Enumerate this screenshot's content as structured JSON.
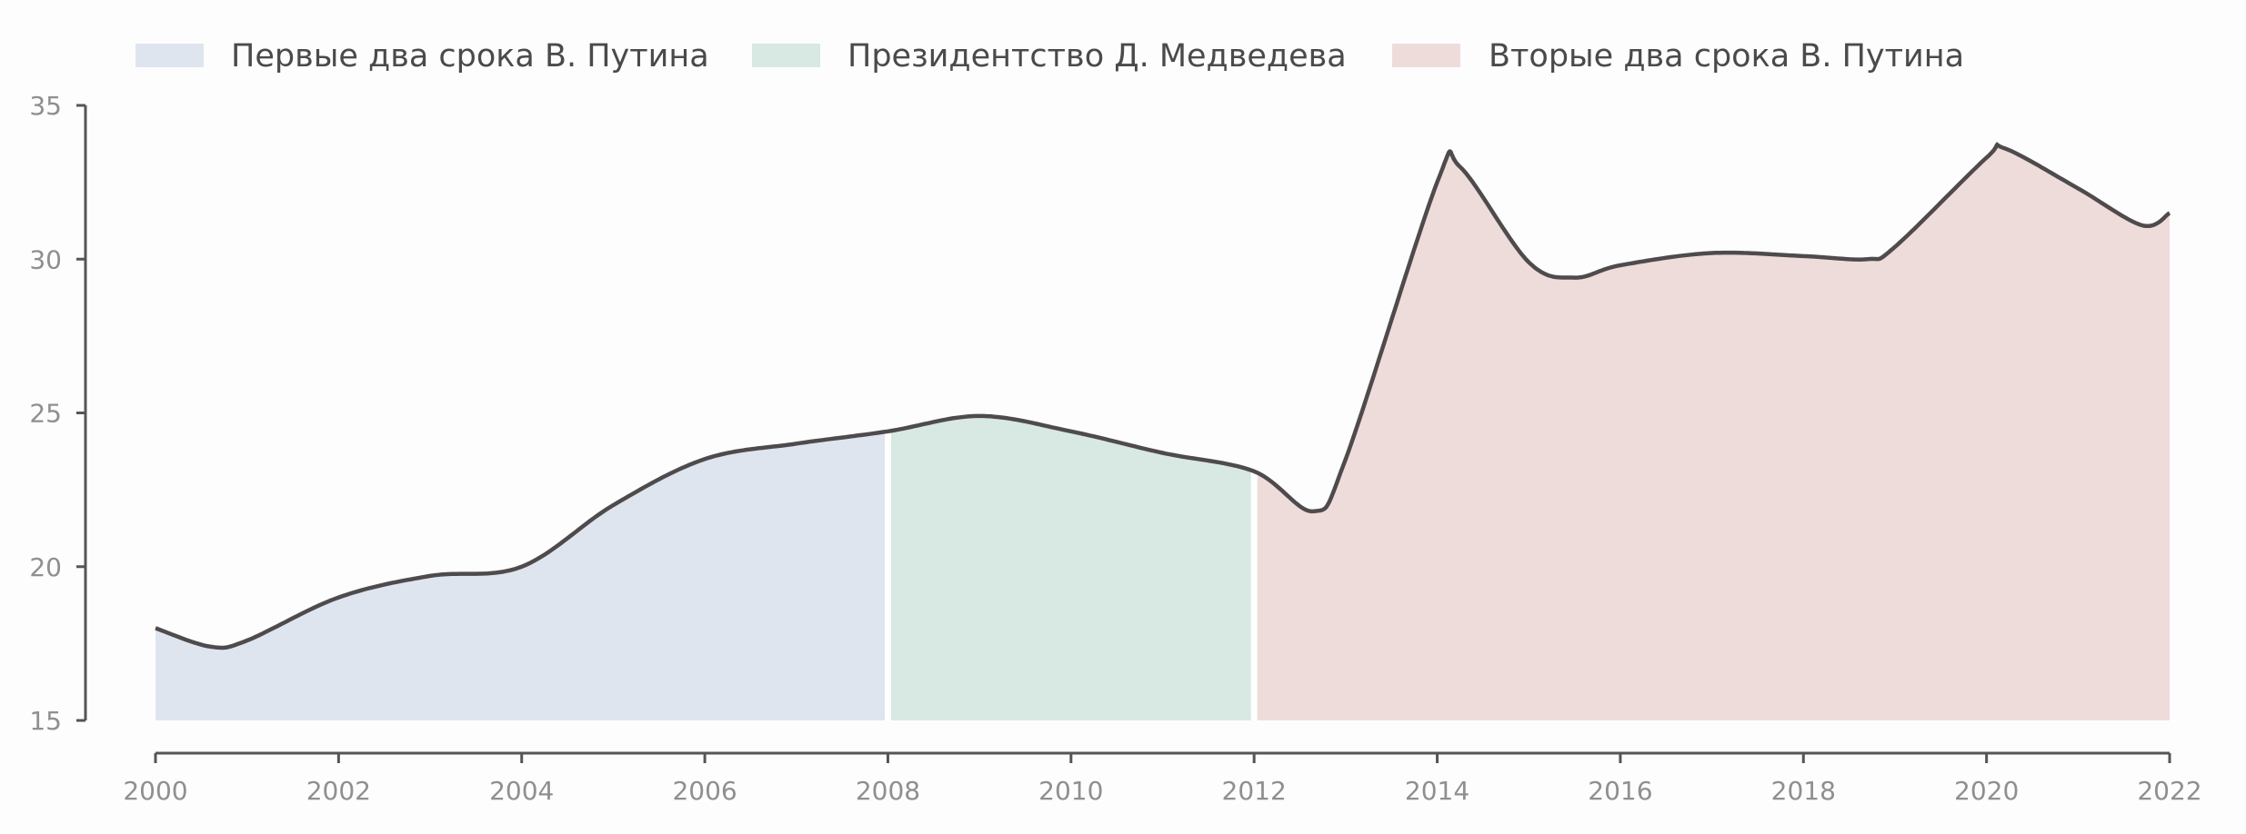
{
  "chart_data": {
    "type": "area",
    "title": "",
    "xlabel": "",
    "ylabel": "",
    "xlim": [
      2000,
      2022
    ],
    "ylim": [
      15,
      35
    ],
    "x_ticks": [
      "2000",
      "2002",
      "2004",
      "2006",
      "2008",
      "2010",
      "2012",
      "2014",
      "2016",
      "2018",
      "2020",
      "2022"
    ],
    "y_ticks": [
      "15",
      "20",
      "25",
      "30",
      "35"
    ],
    "legend_position": "top",
    "grid": false,
    "x": [
      2000,
      2000.6,
      2001,
      2002,
      2003,
      2004,
      2005,
      2006,
      2007,
      2008,
      2009,
      2010,
      2011,
      2012,
      2012.65,
      2013,
      2014,
      2014.25,
      2015,
      2015.5,
      2016,
      2017,
      2018,
      2018.7,
      2019,
      2020,
      2020.2,
      2021,
      2021.7,
      2022
    ],
    "y": [
      18.0,
      17.4,
      17.6,
      19.0,
      19.7,
      20.0,
      22.0,
      23.5,
      24.0,
      24.4,
      24.9,
      24.4,
      23.7,
      23.1,
      21.8,
      23.5,
      32.5,
      33.0,
      29.9,
      29.4,
      29.8,
      30.2,
      30.1,
      30.0,
      30.4,
      33.3,
      33.6,
      32.3,
      31.1,
      31.5
    ],
    "series": [
      {
        "name": "Первые два срока В. Путина",
        "range": [
          2000,
          2008
        ],
        "color": "#dfe5ee"
      },
      {
        "name": "Президентство Д. Медведева",
        "range": [
          2008,
          2012
        ],
        "color": "#d8e8e2"
      },
      {
        "name": "Вторые два срока В. Путина",
        "range": [
          2012,
          2022
        ],
        "color": "#eedcdb"
      }
    ],
    "line_color": "#4f4b4d"
  },
  "legend": {
    "items": [
      {
        "label": "Первые два срока В. Путина",
        "color": "#dfe5ee"
      },
      {
        "label": "Президентство Д. Медведева",
        "color": "#d8e8e2"
      },
      {
        "label": "Вторые два срока В. Путина",
        "color": "#eedcdb"
      }
    ]
  }
}
